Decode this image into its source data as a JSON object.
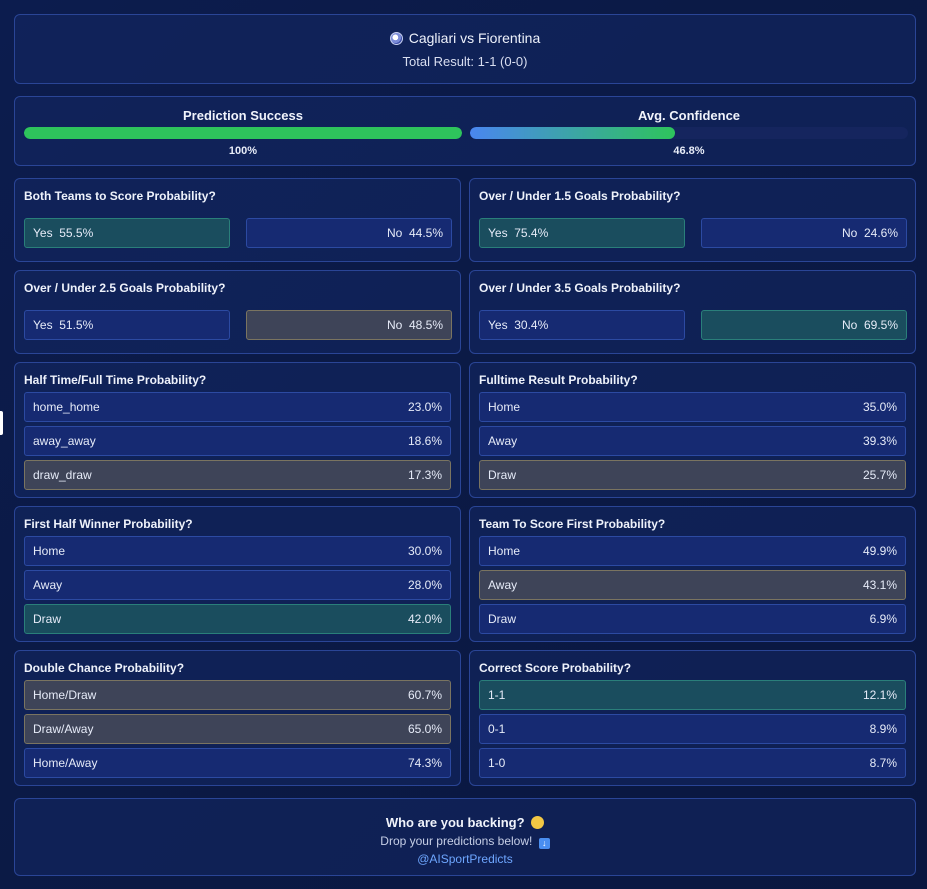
{
  "header": {
    "match": "Cagliari vs Fiorentina",
    "result": "Total Result: 1-1 (0-0)"
  },
  "stats": {
    "success": {
      "label": "Prediction Success",
      "value": "100%",
      "fraction": 1.0,
      "color": "#2ec45c"
    },
    "confidence": {
      "label": "Avg. Confidence",
      "value": "46.8%",
      "fraction": 0.468,
      "color_start": "#4a86f0",
      "color_end": "#2ec45c"
    }
  },
  "btts": {
    "title": "Both Teams to Score Probability?",
    "yes_label": "Yes",
    "yes_value": "55.5%",
    "no_label": "No",
    "no_value": "44.5%"
  },
  "ou15": {
    "title": "Over / Under 1.5 Goals Probability?",
    "yes_label": "Yes",
    "yes_value": "75.4%",
    "no_label": "No",
    "no_value": "24.6%"
  },
  "ou25": {
    "title": "Over / Under 2.5 Goals Probability?",
    "yes_label": "Yes",
    "yes_value": "51.5%",
    "no_label": "No",
    "no_value": "48.5%"
  },
  "ou35": {
    "title": "Over / Under 3.5 Goals Probability?",
    "yes_label": "Yes",
    "yes_value": "30.4%",
    "no_label": "No",
    "no_value": "69.5%"
  },
  "htft": {
    "title": "Half Time/Full Time Probability?",
    "rows": [
      {
        "label": "home_home",
        "value": "23.0%"
      },
      {
        "label": "away_away",
        "value": "18.6%"
      },
      {
        "label": "draw_draw",
        "value": "17.3%"
      }
    ]
  },
  "ftr": {
    "title": "Fulltime Result Probability?",
    "rows": [
      {
        "label": "Home",
        "value": "35.0%"
      },
      {
        "label": "Away",
        "value": "39.3%"
      },
      {
        "label": "Draw",
        "value": "25.7%"
      }
    ]
  },
  "fhw": {
    "title": "First Half Winner Probability?",
    "rows": [
      {
        "label": "Home",
        "value": "30.0%"
      },
      {
        "label": "Away",
        "value": "28.0%"
      },
      {
        "label": "Draw",
        "value": "42.0%"
      }
    ]
  },
  "tsf": {
    "title": "Team To Score First Probability?",
    "rows": [
      {
        "label": "Home",
        "value": "49.9%"
      },
      {
        "label": "Away",
        "value": "43.1%"
      },
      {
        "label": "Draw",
        "value": "6.9%"
      }
    ]
  },
  "dc": {
    "title": "Double Chance Probability?",
    "rows": [
      {
        "label": "Home/Draw",
        "value": "60.7%"
      },
      {
        "label": "Draw/Away",
        "value": "65.0%"
      },
      {
        "label": "Home/Away",
        "value": "74.3%"
      }
    ]
  },
  "cs": {
    "title": "Correct Score Probability?",
    "rows": [
      {
        "label": "1-1",
        "value": "12.1%"
      },
      {
        "label": "0-1",
        "value": "8.9%"
      },
      {
        "label": "1-0",
        "value": "8.7%"
      }
    ]
  },
  "footer": {
    "question": "Who are you backing?",
    "cta": "Drop your predictions below!",
    "handle": "@AISportPredicts"
  },
  "icons": {
    "match": "soccer-ball-icon",
    "question": "thinking-face-icon",
    "cta": "down-arrow-icon"
  }
}
